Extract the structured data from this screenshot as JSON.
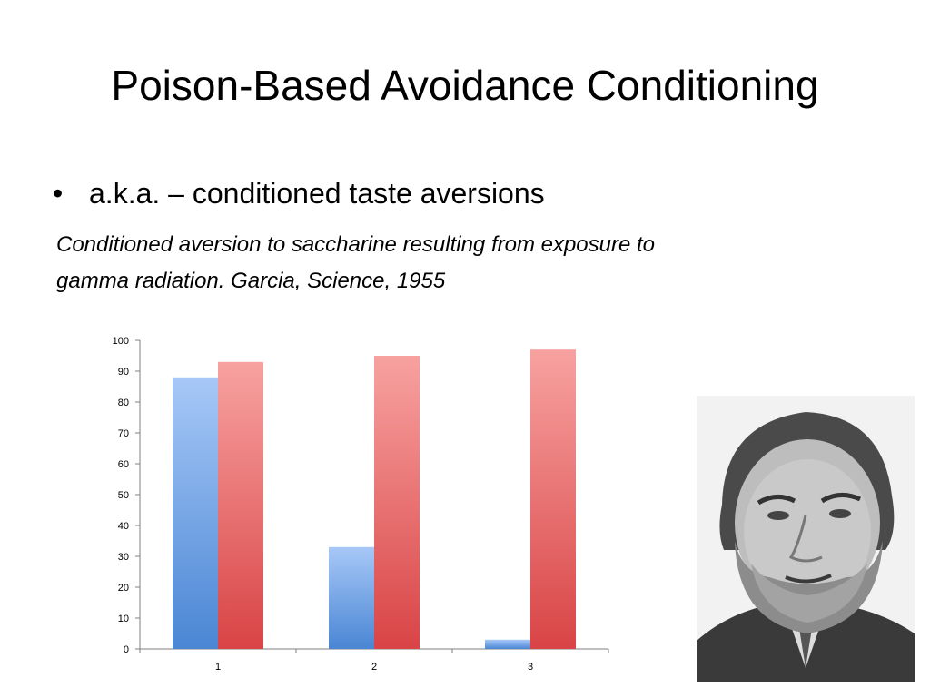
{
  "slide": {
    "title": "Poison-Based Avoidance Conditioning",
    "bullet": "a.k.a. – conditioned taste aversions",
    "caption_line1": "Conditioned aversion to saccharine resulting from exposure to",
    "caption_line2": "gamma radiation.  Garcia, Science, 1955"
  },
  "chart_data": {
    "type": "bar",
    "categories": [
      "1",
      "2",
      "3"
    ],
    "series": [
      {
        "values": [
          88,
          33,
          3
        ],
        "color": "#4A86D4"
      },
      {
        "values": [
          93,
          95,
          97
        ],
        "color": "#D94446"
      }
    ],
    "ylim": [
      0,
      100
    ],
    "yticks": [
      0,
      10,
      20,
      30,
      40,
      50,
      60,
      70,
      80,
      90,
      100
    ],
    "grid": false,
    "legend": "none",
    "title": "",
    "xlabel": "",
    "ylabel": ""
  },
  "portrait": {
    "icon": "portrait-photo-icon"
  }
}
